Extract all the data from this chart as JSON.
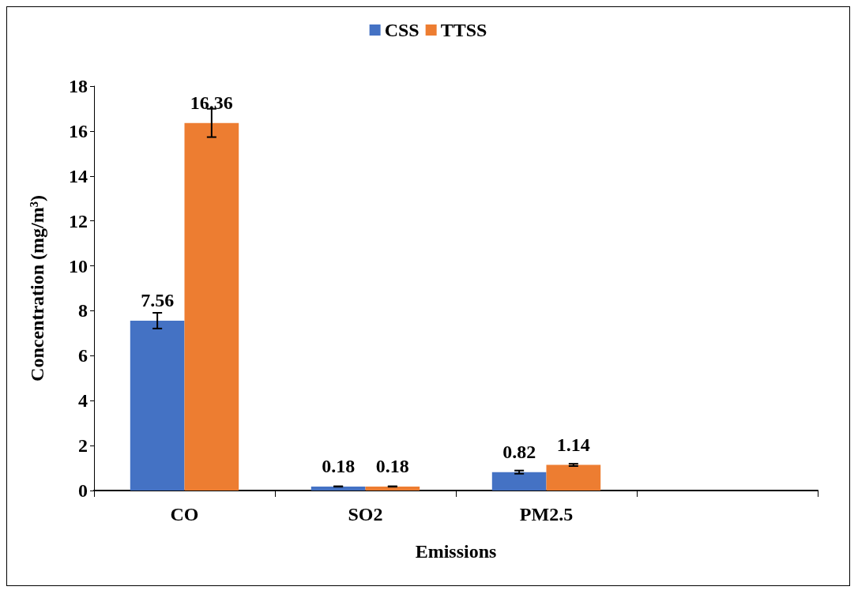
{
  "chart_data": {
    "type": "bar",
    "xlabel": "Emissions",
    "ylabel": "Concentration (mg/m³)",
    "categories": [
      "CO",
      "SO2",
      "PM2.5",
      null
    ],
    "series": [
      {
        "name": "CSS",
        "color": "#4472c4",
        "values": [
          7.56,
          0.18,
          0.82,
          null
        ],
        "errors": [
          0.35,
          0.01,
          0.07,
          null
        ]
      },
      {
        "name": "TTSS",
        "color": "#ed7d31",
        "values": [
          16.36,
          0.18,
          1.14,
          null
        ],
        "errors": [
          0.63,
          0.01,
          0.05,
          null
        ]
      }
    ],
    "ylim": [
      0,
      18
    ],
    "yticks": [
      0,
      2,
      4,
      6,
      8,
      10,
      12,
      14,
      16,
      18
    ],
    "grid": false,
    "legend": "top",
    "data_labels": true
  }
}
